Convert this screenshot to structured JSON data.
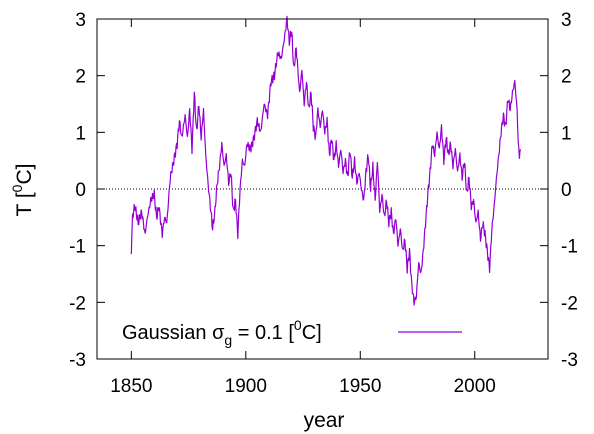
{
  "chart_data": {
    "type": "line",
    "xlabel": "year",
    "ylabel": "T [0C]",
    "ylabel_parts": {
      "base": "T [",
      "sup": "0",
      "tail": "C]"
    },
    "xlim": [
      1835,
      2032
    ],
    "ylim": [
      -3,
      3
    ],
    "xticks": [
      1850,
      1900,
      1950,
      2000
    ],
    "yticks": [
      -3,
      -2,
      -1,
      0,
      1,
      2,
      3
    ],
    "right_axis_ticks": true,
    "zero_line": {
      "y": 0,
      "style": "dotted"
    },
    "grid": false,
    "legend_position": "bottom-center",
    "series": [
      {
        "name": "Gaussian σg = 0.1 [0C]",
        "legend_parts": {
          "pre": "Gaussian ",
          "sigma": "σ",
          "sub": "g",
          "mid": " = 0.1 [",
          "sup": "0",
          "tail": "C]"
        },
        "color": "#9400d3",
        "points": [
          [
            1850.0,
            -1.1
          ],
          [
            1850.5,
            -0.5
          ],
          [
            1851.5,
            -0.3
          ],
          [
            1853.0,
            -0.6
          ],
          [
            1854.5,
            -0.4
          ],
          [
            1856.0,
            -0.8
          ],
          [
            1857.0,
            -0.5
          ],
          [
            1858.5,
            -0.2
          ],
          [
            1860.0,
            -0.1
          ],
          [
            1861.0,
            -0.5
          ],
          [
            1862.0,
            -0.3
          ],
          [
            1863.5,
            -0.8
          ],
          [
            1864.5,
            -0.5
          ],
          [
            1865.5,
            -0.6
          ],
          [
            1867.0,
            0.2
          ],
          [
            1868.5,
            0.5
          ],
          [
            1870.0,
            0.8
          ],
          [
            1871.0,
            1.2
          ],
          [
            1872.0,
            0.9
          ],
          [
            1873.5,
            1.3
          ],
          [
            1874.5,
            0.9
          ],
          [
            1875.5,
            1.4
          ],
          [
            1876.5,
            0.7
          ],
          [
            1877.5,
            1.7
          ],
          [
            1878.5,
            1.0
          ],
          [
            1879.5,
            1.5
          ],
          [
            1880.5,
            0.9
          ],
          [
            1881.5,
            1.4
          ],
          [
            1882.5,
            0.6
          ],
          [
            1883.5,
            0.1
          ],
          [
            1884.5,
            -0.3
          ],
          [
            1885.5,
            -0.7
          ],
          [
            1886.5,
            -0.4
          ],
          [
            1887.5,
            0.1
          ],
          [
            1888.5,
            0.4
          ],
          [
            1889.5,
            0.8
          ],
          [
            1890.5,
            0.4
          ],
          [
            1891.5,
            0.6
          ],
          [
            1892.5,
            0.1
          ],
          [
            1893.5,
            0.3
          ],
          [
            1894.5,
            -0.4
          ],
          [
            1895.5,
            -0.2
          ],
          [
            1896.5,
            -0.8
          ],
          [
            1897.5,
            0.0
          ],
          [
            1898.5,
            0.5
          ],
          [
            1899.5,
            0.4
          ],
          [
            1900.5,
            0.8
          ],
          [
            1902.0,
            0.7
          ],
          [
            1903.5,
            0.9
          ],
          [
            1905.0,
            1.2
          ],
          [
            1906.5,
            1.0
          ],
          [
            1908.0,
            1.5
          ],
          [
            1909.5,
            1.3
          ],
          [
            1911.0,
            1.9
          ],
          [
            1912.5,
            2.0
          ],
          [
            1914.0,
            2.4
          ],
          [
            1915.5,
            2.3
          ],
          [
            1917.0,
            2.7
          ],
          [
            1918.0,
            3.0
          ],
          [
            1919.0,
            2.6
          ],
          [
            1920.0,
            2.8
          ],
          [
            1921.0,
            2.1
          ],
          [
            1922.0,
            2.5
          ],
          [
            1923.5,
            1.7
          ],
          [
            1924.5,
            2.1
          ],
          [
            1925.5,
            1.5
          ],
          [
            1926.5,
            1.9
          ],
          [
            1927.5,
            1.4
          ],
          [
            1928.5,
            1.7
          ],
          [
            1929.5,
            1.1
          ],
          [
            1930.5,
            0.9
          ],
          [
            1931.5,
            1.4
          ],
          [
            1932.5,
            1.1
          ],
          [
            1933.5,
            1.4
          ],
          [
            1934.5,
            1.0
          ],
          [
            1935.5,
            1.2
          ],
          [
            1936.5,
            0.6
          ],
          [
            1937.5,
            0.9
          ],
          [
            1938.5,
            0.5
          ],
          [
            1939.5,
            0.8
          ],
          [
            1940.5,
            0.4
          ],
          [
            1941.5,
            0.7
          ],
          [
            1942.5,
            0.3
          ],
          [
            1943.5,
            0.5
          ],
          [
            1944.5,
            0.2
          ],
          [
            1945.5,
            0.7
          ],
          [
            1946.5,
            0.2
          ],
          [
            1947.5,
            0.5
          ],
          [
            1948.5,
            0.1
          ],
          [
            1949.5,
            0.3
          ],
          [
            1950.5,
            0.0
          ],
          [
            1951.5,
            -0.2
          ],
          [
            1952.5,
            0.3
          ],
          [
            1953.5,
            0.6
          ],
          [
            1954.5,
            0.0
          ],
          [
            1955.5,
            0.4
          ],
          [
            1956.5,
            -0.2
          ],
          [
            1957.5,
            0.5
          ],
          [
            1958.5,
            -0.4
          ],
          [
            1959.5,
            -0.1
          ],
          [
            1960.5,
            -0.5
          ],
          [
            1961.5,
            -0.2
          ],
          [
            1962.5,
            -0.6
          ],
          [
            1963.5,
            -0.4
          ],
          [
            1964.5,
            -0.8
          ],
          [
            1965.5,
            -0.5
          ],
          [
            1966.5,
            -1.0
          ],
          [
            1967.5,
            -0.7
          ],
          [
            1968.5,
            -1.1
          ],
          [
            1969.5,
            -0.9
          ],
          [
            1970.5,
            -1.4
          ],
          [
            1971.5,
            -1.1
          ],
          [
            1972.5,
            -1.7
          ],
          [
            1973.5,
            -2.0
          ],
          [
            1974.5,
            -1.9
          ],
          [
            1975.5,
            -1.3
          ],
          [
            1976.5,
            -1.5
          ],
          [
            1977.5,
            -1.1
          ],
          [
            1978.5,
            -0.6
          ],
          [
            1979.5,
            -0.1
          ],
          [
            1980.5,
            0.3
          ],
          [
            1981.5,
            0.8
          ],
          [
            1982.5,
            0.6
          ],
          [
            1983.5,
            1.0
          ],
          [
            1984.5,
            0.7
          ],
          [
            1985.5,
            1.1
          ],
          [
            1986.5,
            0.5
          ],
          [
            1987.5,
            0.9
          ],
          [
            1988.5,
            0.6
          ],
          [
            1989.5,
            0.8
          ],
          [
            1990.5,
            0.4
          ],
          [
            1991.5,
            0.7
          ],
          [
            1992.5,
            0.3
          ],
          [
            1993.5,
            0.6
          ],
          [
            1994.5,
            0.2
          ],
          [
            1995.5,
            0.5
          ],
          [
            1996.5,
            -0.1
          ],
          [
            1997.5,
            0.2
          ],
          [
            1998.5,
            -0.3
          ],
          [
            1999.5,
            -0.2
          ],
          [
            2000.5,
            -0.6
          ],
          [
            2001.5,
            -0.4
          ],
          [
            2002.5,
            -0.9
          ],
          [
            2003.5,
            -0.6
          ],
          [
            2004.5,
            -0.8
          ],
          [
            2005.5,
            -1.1
          ],
          [
            2006.5,
            -1.4
          ],
          [
            2007.5,
            -0.7
          ],
          [
            2008.5,
            -0.3
          ],
          [
            2009.5,
            0.2
          ],
          [
            2010.5,
            0.6
          ],
          [
            2011.5,
            1.0
          ],
          [
            2012.5,
            1.3
          ],
          [
            2013.5,
            1.1
          ],
          [
            2014.5,
            1.6
          ],
          [
            2015.5,
            1.4
          ],
          [
            2016.5,
            1.7
          ],
          [
            2017.5,
            1.9
          ],
          [
            2018.5,
            1.4
          ],
          [
            2019.0,
            0.8
          ],
          [
            2019.5,
            0.6
          ],
          [
            2020.0,
            0.7
          ]
        ]
      }
    ]
  }
}
